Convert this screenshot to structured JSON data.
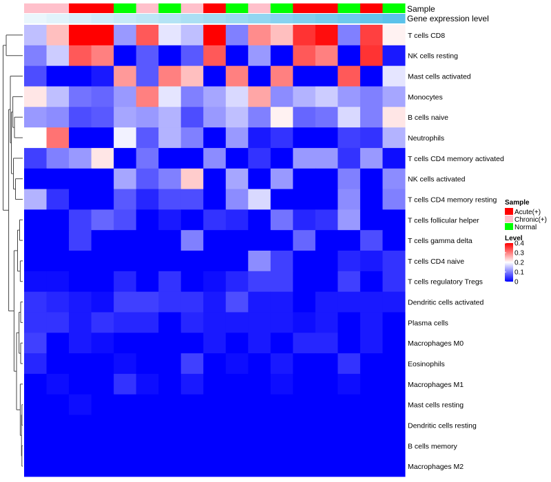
{
  "chart_data": {
    "type": "heatmap",
    "annotation_tracks": [
      "Sample",
      "Gene expression level"
    ],
    "sample_groups": [
      "Chronic(+)",
      "Chronic(+)",
      "Acute(+)",
      "Acute(+)",
      "Normal",
      "Chronic(+)",
      "Normal",
      "Chronic(+)",
      "Acute(+)",
      "Normal",
      "Chronic(+)",
      "Normal",
      "Acute(+)",
      "Acute(+)",
      "Normal",
      "Acute(+)",
      "Normal"
    ],
    "gene_expression_level": [
      0.02,
      0.05,
      0.08,
      0.11,
      0.14,
      0.17,
      0.2,
      0.23,
      0.26,
      0.29,
      0.32,
      0.35,
      0.38,
      0.41,
      0.44,
      0.47,
      0.5
    ],
    "rows": [
      "T cells CD8",
      "NK cells resting",
      "Mast cells activated",
      "Monocytes",
      "B cells naive",
      "Neutrophils",
      "T cells CD4 memory activated",
      "NK cells activated",
      "T cells CD4 memory resting",
      "T cells follicular helper",
      "T cells gamma delta",
      "T cells CD4 naive",
      "T cells regulatory  Tregs",
      "Dendritic cells activated",
      "Plasma cells",
      "Macrophages M0",
      "Eosinophils",
      "Macrophages M1",
      "Mast cells resting",
      "Dendritic cells resting",
      "B cells memory",
      "Macrophages M2"
    ],
    "values": [
      [
        0.15,
        0.25,
        0.4,
        0.4,
        0.12,
        0.33,
        0.18,
        0.15,
        0.4,
        0.1,
        0.29,
        0.25,
        0.36,
        0.39,
        0.1,
        0.35,
        0.21
      ],
      [
        0.1,
        0.16,
        0.33,
        0.3,
        0.0,
        0.07,
        0.0,
        0.07,
        0.33,
        0.0,
        0.12,
        0.0,
        0.33,
        0.3,
        0.0,
        0.36,
        0.02
      ],
      [
        0.06,
        0.0,
        0.0,
        0.02,
        0.28,
        0.07,
        0.3,
        0.25,
        0.0,
        0.3,
        0.0,
        0.3,
        0.0,
        0.0,
        0.33,
        0.0,
        0.18
      ],
      [
        0.22,
        0.15,
        0.09,
        0.08,
        0.12,
        0.3,
        0.18,
        0.1,
        0.13,
        0.17,
        0.27,
        0.11,
        0.14,
        0.16,
        0.12,
        0.1,
        0.13
      ],
      [
        0.12,
        0.11,
        0.06,
        0.07,
        0.13,
        0.12,
        0.14,
        0.06,
        0.12,
        0.15,
        0.1,
        0.21,
        0.08,
        0.09,
        0.17,
        0.1,
        0.22
      ],
      [
        0.2,
        0.31,
        0.0,
        0.0,
        0.19,
        0.07,
        0.14,
        0.1,
        0.0,
        0.12,
        0.02,
        0.04,
        0.0,
        0.0,
        0.05,
        0.04,
        0.14
      ],
      [
        0.05,
        0.1,
        0.12,
        0.22,
        0.0,
        0.09,
        0.0,
        0.0,
        0.11,
        0.0,
        0.04,
        0.0,
        0.12,
        0.12,
        0.04,
        0.12,
        0.01
      ],
      [
        0.0,
        0.0,
        0.0,
        0.0,
        0.13,
        0.07,
        0.1,
        0.24,
        0.0,
        0.13,
        0.0,
        0.12,
        0.0,
        0.0,
        0.1,
        0.0,
        0.11
      ],
      [
        0.14,
        0.04,
        0.0,
        0.0,
        0.07,
        0.03,
        0.06,
        0.06,
        0.0,
        0.11,
        0.17,
        0.0,
        0.0,
        0.0,
        0.11,
        0.0,
        0.1
      ],
      [
        0.0,
        0.0,
        0.05,
        0.08,
        0.06,
        0.0,
        0.02,
        0.0,
        0.04,
        0.03,
        0.0,
        0.09,
        0.03,
        0.04,
        0.12,
        0.0,
        0.0
      ],
      [
        0.0,
        0.0,
        0.05,
        0.0,
        0.0,
        0.0,
        0.0,
        0.1,
        0.0,
        0.0,
        0.0,
        0.0,
        0.08,
        0.0,
        0.0,
        0.06,
        0.0
      ],
      [
        0.0,
        0.0,
        0.0,
        0.0,
        0.0,
        0.0,
        0.0,
        0.0,
        0.0,
        0.0,
        0.11,
        0.05,
        0.0,
        0.0,
        0.03,
        0.02,
        0.04
      ],
      [
        0.01,
        0.01,
        0.0,
        0.0,
        0.03,
        0.0,
        0.04,
        0.0,
        0.01,
        0.03,
        0.05,
        0.05,
        0.0,
        0.0,
        0.05,
        0.0,
        0.04
      ],
      [
        0.04,
        0.03,
        0.02,
        0.01,
        0.05,
        0.05,
        0.04,
        0.04,
        0.02,
        0.06,
        0.02,
        0.02,
        0.0,
        0.02,
        0.02,
        0.02,
        0.02
      ],
      [
        0.04,
        0.04,
        0.02,
        0.04,
        0.03,
        0.03,
        0.0,
        0.03,
        0.02,
        0.02,
        0.02,
        0.02,
        0.01,
        0.02,
        0.0,
        0.02,
        0.0
      ],
      [
        0.05,
        0.0,
        0.02,
        0.01,
        0.0,
        0.0,
        0.0,
        0.0,
        0.02,
        0.0,
        0.02,
        0.0,
        0.03,
        0.03,
        0.0,
        0.02,
        0.0
      ],
      [
        0.03,
        0.0,
        0.0,
        0.0,
        0.01,
        0.0,
        0.0,
        0.05,
        0.0,
        0.01,
        0.0,
        0.02,
        0.0,
        0.0,
        0.04,
        0.0,
        0.0
      ],
      [
        0.0,
        0.01,
        0.0,
        0.0,
        0.04,
        0.01,
        0.0,
        0.02,
        0.0,
        0.0,
        0.0,
        0.01,
        0.0,
        0.0,
        0.01,
        0.0,
        0.0
      ],
      [
        0.0,
        0.0,
        0.01,
        0.0,
        0.0,
        0.0,
        0.0,
        0.0,
        0.0,
        0.0,
        0.0,
        0.0,
        0.0,
        0.0,
        0.0,
        0.0,
        0.0
      ],
      [
        0.0,
        0.0,
        0.0,
        0.0,
        0.0,
        0.0,
        0.0,
        0.0,
        0.0,
        0.0,
        0.0,
        0.0,
        0.0,
        0.0,
        0.0,
        0.0,
        0.0
      ],
      [
        0.0,
        0.0,
        0.0,
        0.0,
        0.0,
        0.0,
        0.0,
        0.0,
        0.0,
        0.0,
        0.0,
        0.0,
        0.0,
        0.0,
        0.0,
        0.0,
        0.0
      ],
      [
        0.0,
        0.0,
        0.0,
        0.0,
        0.0,
        0.0,
        0.0,
        0.0,
        0.0,
        0.0,
        0.0,
        0.0,
        0.0,
        0.0,
        0.0,
        0.0,
        0.0
      ]
    ],
    "legend_sample": {
      "title": "Sample",
      "entries": [
        {
          "label": "Acute(+)",
          "color": "#ff0000"
        },
        {
          "label": "Chronic(+)",
          "color": "#ffc0cb"
        },
        {
          "label": "Normal",
          "color": "#00ff00"
        }
      ]
    },
    "legend_level": {
      "title": "Level",
      "range": [
        0,
        0.4
      ],
      "ticks": [
        "0.4",
        "0.3",
        "0.2",
        "0.1",
        "0"
      ],
      "tick_values": [
        0.4,
        0.3,
        0.2,
        0.1,
        0
      ],
      "colors": {
        "low": "#0000ff",
        "mid": "#ffffff",
        "high": "#ff0000"
      }
    },
    "expression_track_colors": {
      "low": "#eaf6fc",
      "high": "#5bc2ea"
    }
  }
}
